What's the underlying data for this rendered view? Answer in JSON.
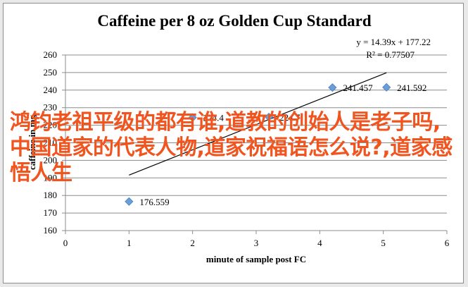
{
  "chart_data": {
    "type": "scatter",
    "title": "Caffeine per 8 oz Golden Cup Standard",
    "xlabel": "minute of sample post FC",
    "ylabel": "caffeine in mg",
    "xlim": [
      0,
      6
    ],
    "ylim": [
      160,
      260
    ],
    "x_ticks": [
      "0",
      "1",
      "2",
      "3",
      "4",
      "5",
      "6"
    ],
    "y_ticks": [
      "160",
      "170",
      "180",
      "190",
      "200",
      "210",
      "220",
      "230",
      "240",
      "250",
      "260"
    ],
    "grid": "horizontal",
    "points": [
      {
        "x": 1,
        "y": 176.559,
        "label": "176.559"
      },
      {
        "x": 2,
        "y": 224.4,
        "label": "224.4"
      },
      {
        "x": 3.2,
        "y": 224.7,
        "label": "224.7"
      },
      {
        "x": 4.2,
        "y": 241.457,
        "label": "241.457"
      },
      {
        "x": 5.05,
        "y": 241.592,
        "label": "241.592"
      }
    ],
    "trendline": {
      "type": "linear",
      "slope": 14.39,
      "intercept": 177.22,
      "x_range": [
        1,
        5.05
      ],
      "equation": "y = 14.39x + 177.22",
      "r_squared": "R² = 0.77507"
    },
    "marker_color": "#6a9ed6",
    "trend_color": "#000000"
  },
  "overlay": {
    "text": "鸿钧老祖平级的都有谁,道教的创始人是老子吗,中国道家的代表人物,道家祝福语怎么说?,道家感悟人生",
    "color": "#f0541f"
  }
}
